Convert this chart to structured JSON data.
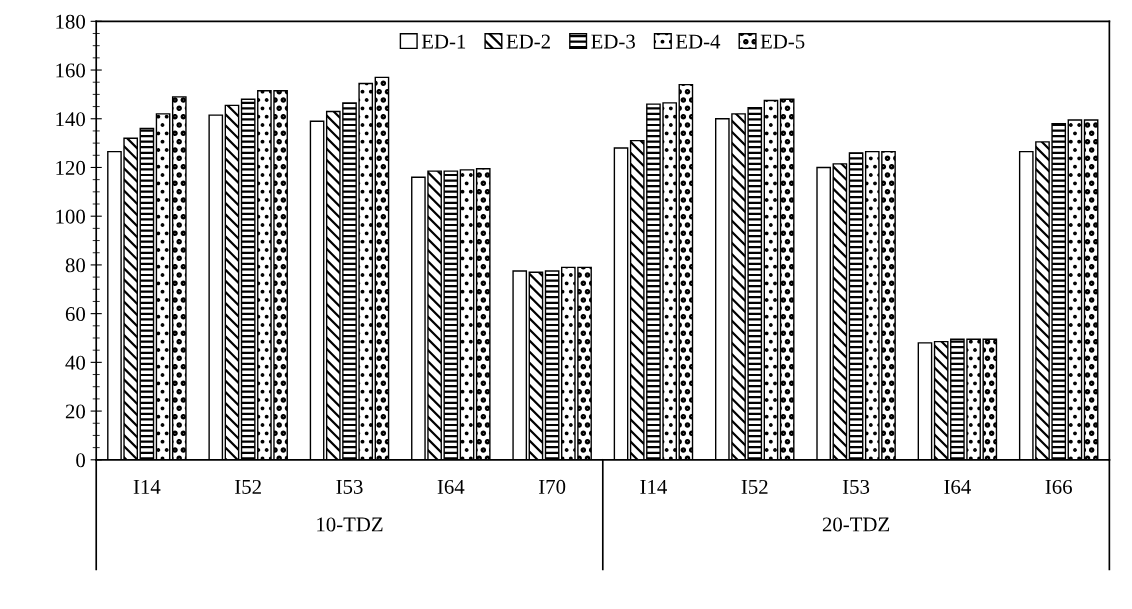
{
  "chart_data": {
    "type": "bar",
    "categories": [
      "I14",
      "I52",
      "I53",
      "I64",
      "I70",
      "I14",
      "I52",
      "I53",
      "I64",
      "I66"
    ],
    "series": [
      {
        "name": "ED-1",
        "color": "#ffffff",
        "values": [
          126.5,
          141.5,
          139,
          116,
          77.5,
          128,
          140,
          120,
          48,
          126.5
        ]
      },
      {
        "name": "ED-2",
        "color": "#000000",
        "values": [
          132,
          145.5,
          143,
          118.5,
          77,
          131,
          142,
          121.5,
          48.5,
          130.5
        ]
      },
      {
        "name": "ED-3",
        "color": "#000000",
        "values": [
          136,
          148,
          146.5,
          118.5,
          77.5,
          146,
          144.5,
          126,
          49.5,
          138
        ]
      },
      {
        "name": "ED-4",
        "color": "#000000",
        "values": [
          142,
          151.5,
          154.5,
          119,
          79,
          146.5,
          147.5,
          126.5,
          49.5,
          139.5
        ]
      },
      {
        "name": "ED-5",
        "color": "#000000",
        "values": [
          149,
          151.5,
          157,
          119.5,
          79,
          154,
          148,
          126.5,
          49.5,
          139.5
        ]
      }
    ],
    "annotations": [
      "10-TDZ",
      "20-TDZ"
    ],
    "ylim": [
      0,
      180
    ],
    "yticks": [
      0,
      20,
      40,
      60,
      80,
      100,
      120,
      140,
      160,
      180
    ],
    "grid": false,
    "legend": "top"
  }
}
